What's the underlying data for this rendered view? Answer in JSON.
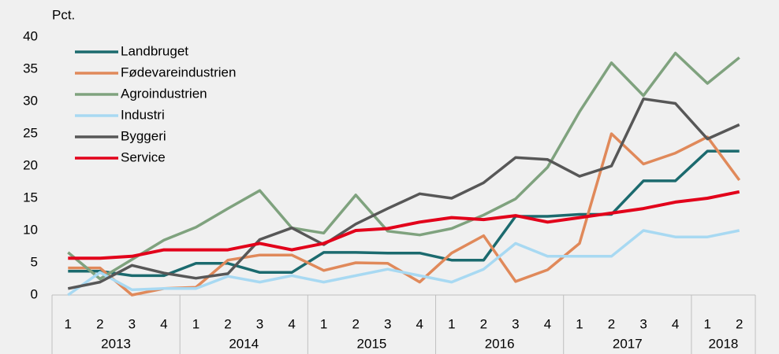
{
  "chart_data": {
    "type": "line",
    "y_label": "Pct.",
    "categories": [
      "1",
      "2",
      "3",
      "4",
      "1",
      "2",
      "3",
      "4",
      "1",
      "2",
      "3",
      "4",
      "1",
      "2",
      "3",
      "4",
      "1",
      "2",
      "3",
      "4",
      "1",
      "2"
    ],
    "years": [
      "2013",
      "2014",
      "2015",
      "2016",
      "2017",
      "2018"
    ],
    "ylim": [
      0,
      40
    ],
    "yticks": [
      0,
      5,
      10,
      15,
      20,
      25,
      30,
      35,
      40
    ],
    "legend": "top-left",
    "series": [
      {
        "name": "Landbruget",
        "color": "#1b6a6e",
        "values": [
          3.7,
          3.7,
          3.0,
          3.0,
          4.9,
          4.9,
          3.5,
          3.5,
          6.6,
          6.6,
          6.5,
          6.5,
          5.4,
          5.4,
          12.2,
          12.2,
          12.5,
          12.5,
          17.7,
          17.7,
          22.3,
          22.3
        ]
      },
      {
        "name": "Fødevareindustrien",
        "color": "#e0895a",
        "values": [
          4.2,
          4.2,
          0,
          1.0,
          1.2,
          5.4,
          6.2,
          6.2,
          3.8,
          5.0,
          4.9,
          2.0,
          6.5,
          9.2,
          2.1,
          3.9,
          8.0,
          25.0,
          20.3,
          22.0,
          24.5,
          17.8
        ]
      },
      {
        "name": "Agroindustrien",
        "color": "#7fa27e",
        "values": [
          6.6,
          2.5,
          5.5,
          8.5,
          10.5,
          13.4,
          16.2,
          10.4,
          9.6,
          15.5,
          9.9,
          9.3,
          10.3,
          12.4,
          14.9,
          19.8,
          28.4,
          36.0,
          30.9,
          37.5,
          32.8,
          36.8
        ]
      },
      {
        "name": "Industri",
        "color": "#a8d9f2",
        "values": [
          0,
          3.5,
          0.8,
          1.0,
          1.0,
          2.9,
          2.0,
          3.0,
          2.0,
          3.0,
          4.0,
          3.0,
          2.0,
          4.0,
          8.0,
          6.0,
          6.0,
          6.0,
          10.0,
          9.0,
          9.0,
          10.0
        ]
      },
      {
        "name": "Byggeri",
        "color": "#575757",
        "values": [
          1.0,
          2.0,
          4.6,
          3.4,
          2.6,
          3.3,
          8.6,
          10.4,
          7.8,
          11.0,
          13.4,
          15.7,
          15.0,
          17.4,
          21.3,
          21.0,
          18.4,
          20.0,
          30.4,
          29.7,
          24.2,
          26.4
        ]
      },
      {
        "name": "Service",
        "color": "#e2001a",
        "values": [
          5.7,
          5.7,
          6.0,
          7.0,
          7.0,
          7.0,
          8.0,
          7.0,
          8.0,
          10.0,
          10.3,
          11.3,
          12.0,
          11.7,
          12.3,
          11.3,
          12.0,
          12.7,
          13.4,
          14.4,
          15.0,
          16.0
        ]
      }
    ]
  }
}
